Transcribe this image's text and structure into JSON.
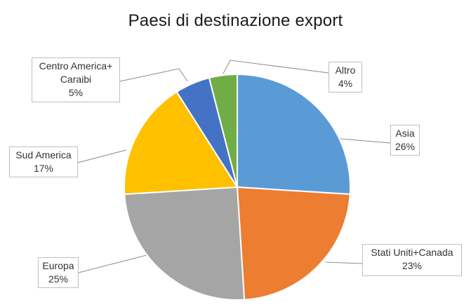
{
  "chart_data": {
    "type": "pie",
    "title": "Paesi di destinazione export",
    "slices": [
      {
        "name": "Asia",
        "value": 26,
        "label": "26%",
        "color": "#5b9bd5"
      },
      {
        "name": "Stati Uniti+Canada",
        "value": 23,
        "label": "23%",
        "color": "#ed7d31"
      },
      {
        "name": "Europa",
        "value": 25,
        "label": "25%",
        "color": "#a5a5a5"
      },
      {
        "name": "Sud America",
        "value": 17,
        "label": "17%",
        "color": "#ffc000"
      },
      {
        "name": "Centro America+ Caraibi",
        "value": 5,
        "label": "5%",
        "color": "#4472c4"
      },
      {
        "name": "Altro",
        "value": 4,
        "label": "4%",
        "color": "#70ad47"
      }
    ],
    "legend": "none",
    "data_labels": "outside with leader lines"
  }
}
